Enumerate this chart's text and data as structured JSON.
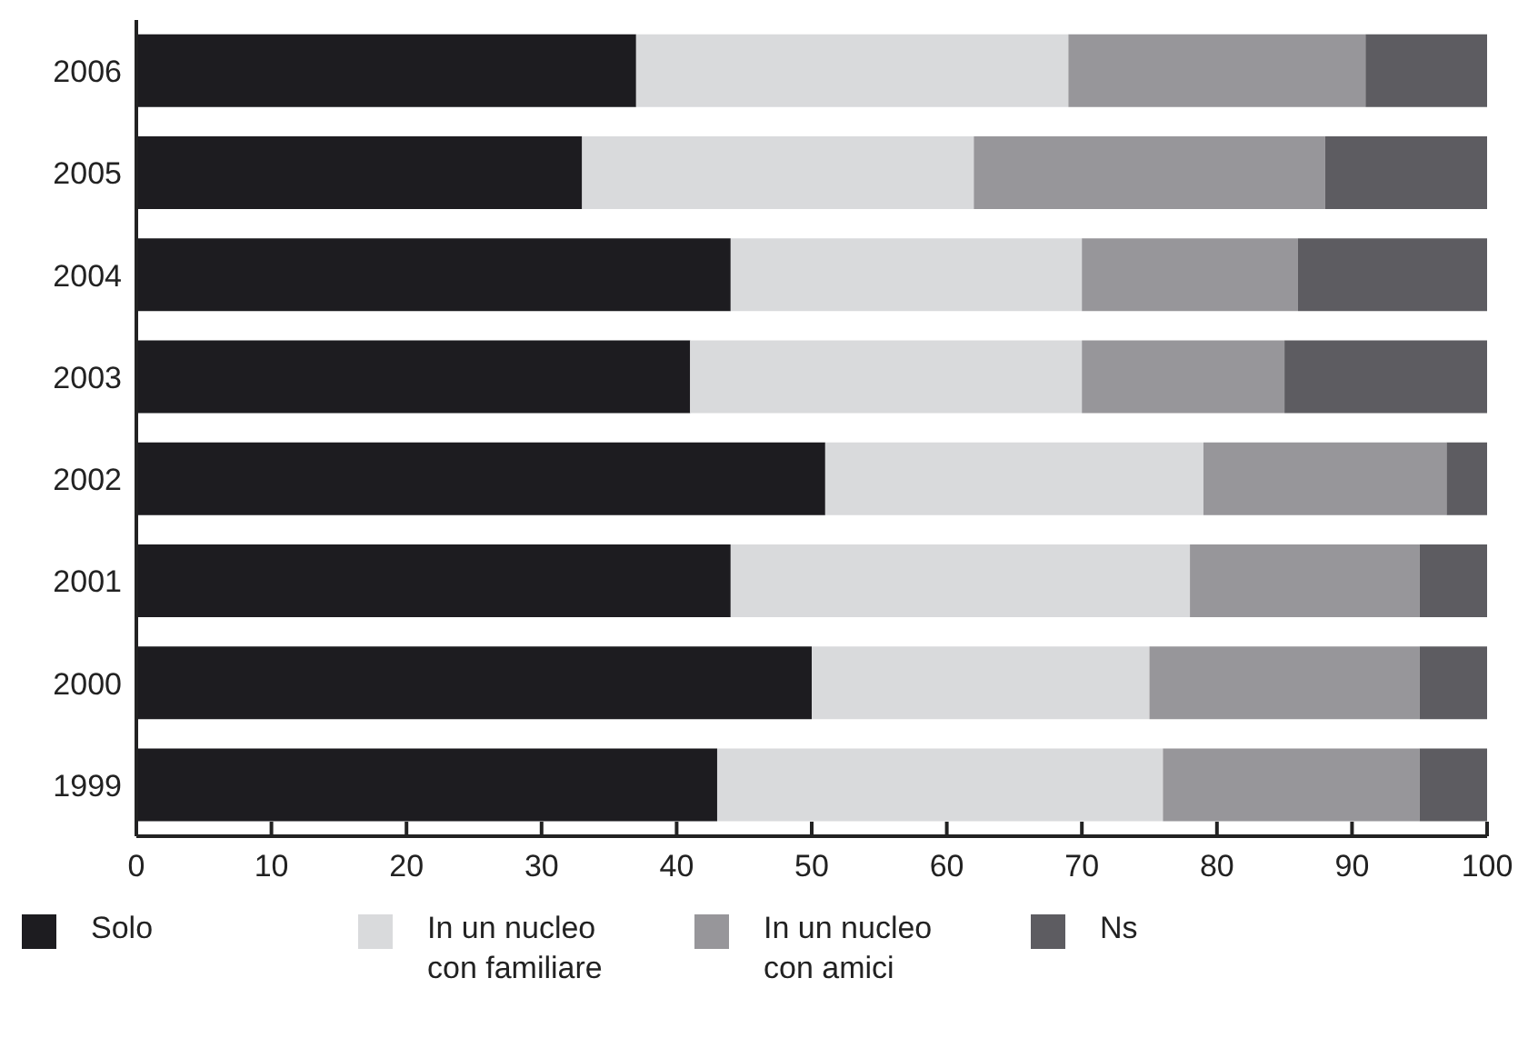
{
  "chart_data": {
    "type": "bar",
    "orientation": "horizontal",
    "stacked": true,
    "categories": [
      "2006",
      "2005",
      "2004",
      "2003",
      "2002",
      "2001",
      "2000",
      "1999"
    ],
    "series": [
      {
        "name": "Solo",
        "color": "#1d1c20",
        "values": [
          37,
          33,
          44,
          41,
          51,
          44,
          50,
          43
        ]
      },
      {
        "name": "In un nucleo con familiare",
        "color": "#d9dadc",
        "values": [
          32,
          29,
          26,
          29,
          28,
          34,
          25,
          33
        ]
      },
      {
        "name": "In un nucleo con amici",
        "color": "#97969a",
        "values": [
          22,
          26,
          16,
          15,
          18,
          17,
          20,
          19
        ]
      },
      {
        "name": "Ns",
        "color": "#5d5c61",
        "values": [
          9,
          12,
          14,
          15,
          3,
          5,
          5,
          5
        ]
      }
    ],
    "xlim": [
      0,
      100
    ],
    "xticks": [
      0,
      10,
      20,
      30,
      40,
      50,
      60,
      70,
      80,
      90,
      100
    ],
    "legend": "bottom"
  }
}
